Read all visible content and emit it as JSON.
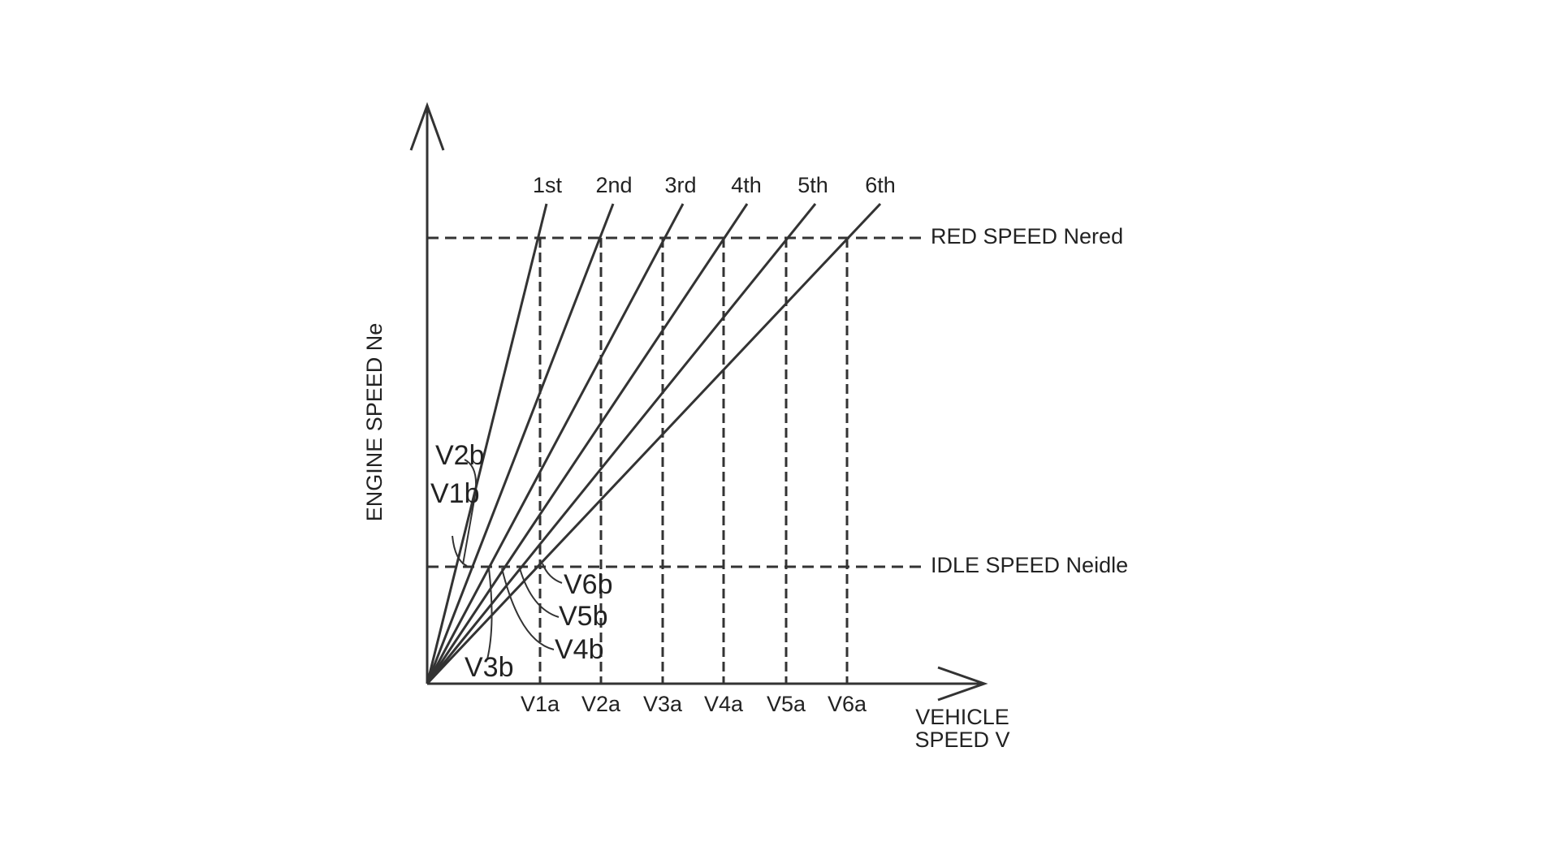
{
  "axes": {
    "y_label": "ENGINE SPEED Ne",
    "x_label": [
      "VEHICLE",
      "SPEED V"
    ]
  },
  "gear_labels": [
    "1st",
    "2nd",
    "3rd",
    "4th",
    "5th",
    "6th"
  ],
  "reference_lines": {
    "red": "RED SPEED Nered",
    "idle": "IDLE SPEED Neidle"
  },
  "x_points": [
    "V1a",
    "V2a",
    "V3a",
    "V4a",
    "V5a",
    "V6a"
  ],
  "intersection_labels": [
    "V1b",
    "V2b",
    "V3b",
    "V4b",
    "V5b",
    "V6b"
  ]
}
